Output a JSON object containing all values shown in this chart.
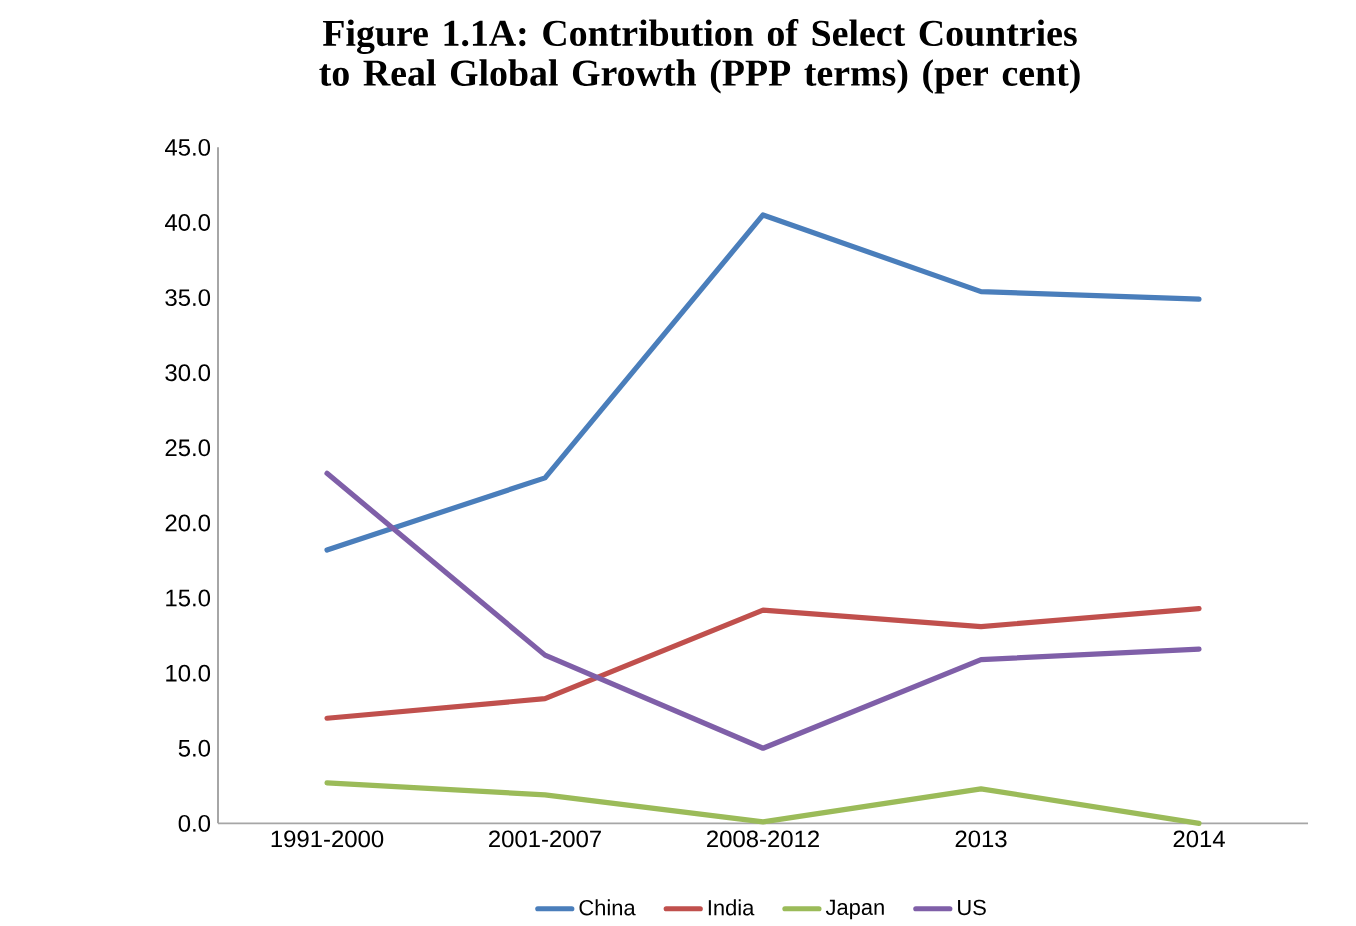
{
  "chart_data": {
    "type": "line",
    "title": "Figure 1.1A: Contribution of Select Countries to Real Global Growth (PPP terms) (per cent)",
    "categories": [
      "1991-2000",
      "2001-2007",
      "2008-2012",
      "2013",
      "2014"
    ],
    "series": [
      {
        "name": "China",
        "color": "#4a7ebb",
        "values": [
          18.2,
          23.0,
          40.5,
          35.4,
          34.9
        ]
      },
      {
        "name": "India",
        "color": "#c0504d",
        "values": [
          7.0,
          8.3,
          14.2,
          13.1,
          14.3
        ]
      },
      {
        "name": "Japan",
        "color": "#9bbb59",
        "values": [
          2.7,
          1.9,
          0.1,
          2.3,
          0.0
        ]
      },
      {
        "name": "US",
        "color": "#7f5fa8",
        "values": [
          23.3,
          11.2,
          5.0,
          10.9,
          11.6
        ]
      }
    ],
    "ylim": [
      0,
      45
    ],
    "yticks": [
      {
        "value": 0,
        "label": "0.0"
      },
      {
        "value": 5,
        "label": "5.0"
      },
      {
        "value": 10,
        "label": "10.0"
      },
      {
        "value": 15,
        "label": "15.0"
      },
      {
        "value": 20,
        "label": "20.0"
      },
      {
        "value": 25,
        "label": "25.0"
      },
      {
        "value": 30,
        "label": "30.0"
      },
      {
        "value": 35,
        "label": "35.0"
      },
      {
        "value": 40,
        "label": "40.0"
      },
      {
        "value": 45,
        "label": "45.0"
      }
    ],
    "grid": false,
    "legend": "bottom",
    "marker": "none",
    "line_style": "solid"
  }
}
